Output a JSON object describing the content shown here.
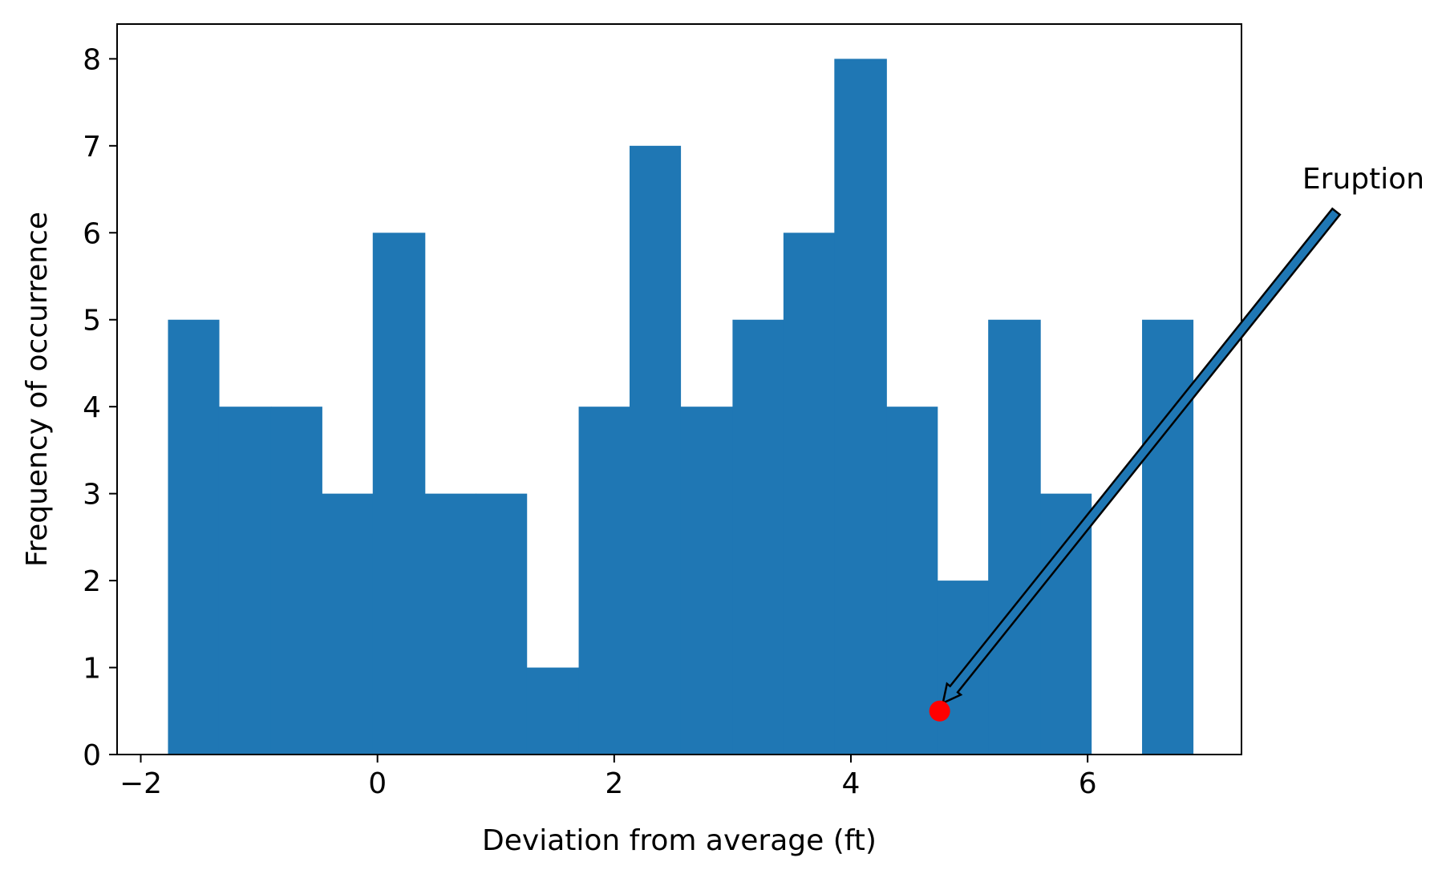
{
  "chart_data": {
    "type": "bar",
    "title": "",
    "xlabel": "Deviation from average (ft)",
    "ylabel": "Frequency of occurrence",
    "xlim": [
      -2.2,
      7.3
    ],
    "ylim": [
      0,
      8.4
    ],
    "xticks": [
      -2,
      0,
      2,
      4,
      6
    ],
    "yticks": [
      0,
      1,
      2,
      3,
      4,
      5,
      6,
      7,
      8
    ],
    "xtick_labels": [
      "−2",
      "0",
      "2",
      "4",
      "6"
    ],
    "ytick_labels": [
      "0",
      "1",
      "2",
      "3",
      "4",
      "5",
      "6",
      "7",
      "8"
    ],
    "grid": false,
    "bar_color": "#1f77b4",
    "bins": [
      {
        "x0": -1.77,
        "x1": -1.34,
        "count": 5
      },
      {
        "x0": -1.34,
        "x1": -0.9,
        "count": 4
      },
      {
        "x0": -0.9,
        "x1": -0.47,
        "count": 4
      },
      {
        "x0": -0.47,
        "x1": -0.04,
        "count": 3
      },
      {
        "x0": -0.04,
        "x1": 0.4,
        "count": 6
      },
      {
        "x0": 0.4,
        "x1": 0.83,
        "count": 3
      },
      {
        "x0": 0.83,
        "x1": 1.26,
        "count": 3
      },
      {
        "x0": 1.26,
        "x1": 1.7,
        "count": 1
      },
      {
        "x0": 1.7,
        "x1": 2.13,
        "count": 4
      },
      {
        "x0": 2.13,
        "x1": 2.56,
        "count": 7
      },
      {
        "x0": 2.56,
        "x1": 3.0,
        "count": 4
      },
      {
        "x0": 3.0,
        "x1": 3.43,
        "count": 5
      },
      {
        "x0": 3.43,
        "x1": 3.86,
        "count": 6
      },
      {
        "x0": 3.86,
        "x1": 4.3,
        "count": 8
      },
      {
        "x0": 4.3,
        "x1": 4.73,
        "count": 4
      },
      {
        "x0": 4.73,
        "x1": 5.16,
        "count": 2
      },
      {
        "x0": 5.16,
        "x1": 5.6,
        "count": 5
      },
      {
        "x0": 5.6,
        "x1": 6.03,
        "count": 3
      },
      {
        "x0": 6.03,
        "x1": 6.46,
        "count": 0
      },
      {
        "x0": 6.46,
        "x1": 6.89,
        "count": 5
      }
    ],
    "annotation": {
      "text": "Eruption",
      "point": {
        "x": 4.75,
        "y": 0.5
      },
      "point_color": "#ff0000",
      "text_position": {
        "x": 7.75,
        "y": 6.5
      },
      "arrow_color": "#1f77b4"
    }
  }
}
